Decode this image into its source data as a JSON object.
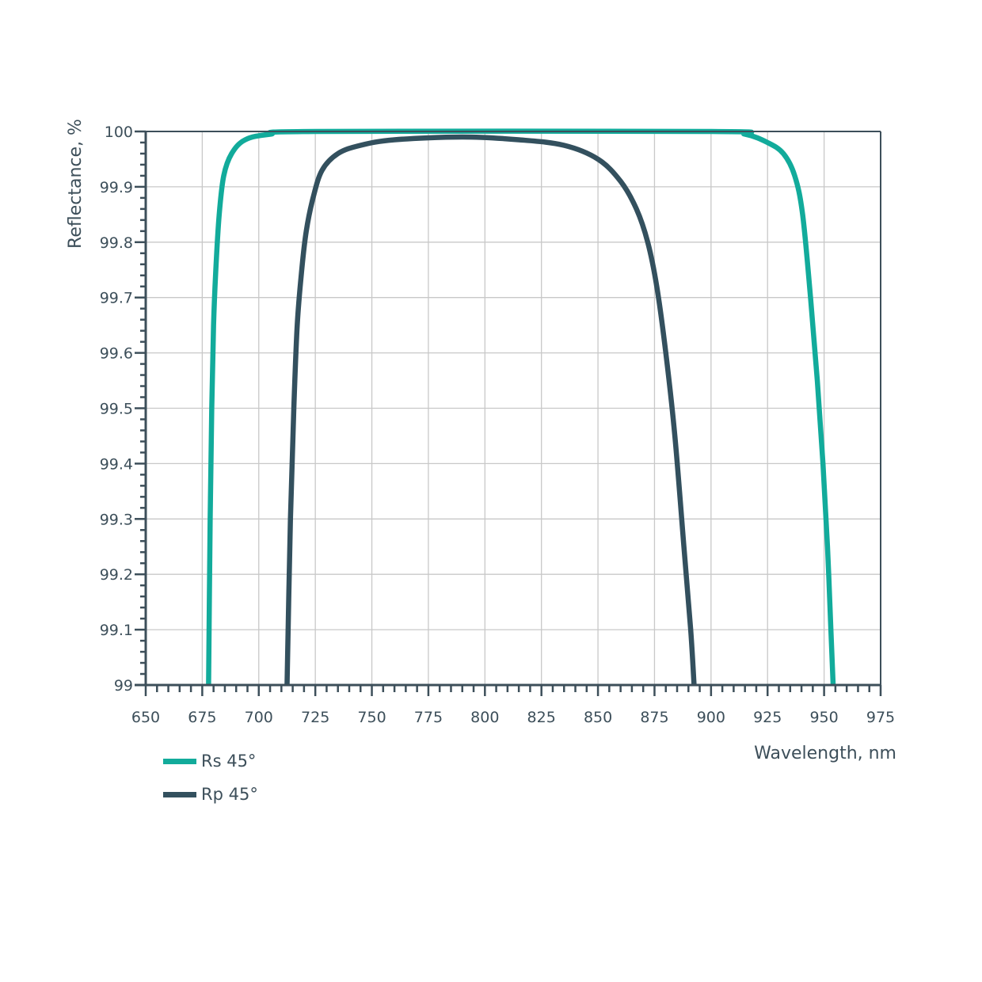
{
  "chart_data": {
    "type": "line",
    "title": "",
    "xlabel": "Wavelength, nm",
    "ylabel": "Reflectance, %",
    "xlim": [
      650,
      975
    ],
    "ylim": [
      99,
      100
    ],
    "x_ticks": [
      650,
      675,
      700,
      725,
      750,
      775,
      800,
      825,
      850,
      875,
      900,
      925,
      950,
      975
    ],
    "y_ticks": [
      "99",
      "99.1",
      "99.2",
      "99.3",
      "99.4",
      "99.5",
      "99.6",
      "99.7",
      "99.8",
      "99.9",
      "100"
    ],
    "grid": true,
    "legend_position": "bottom-left",
    "series": [
      {
        "name": "Rs 45°",
        "color": "#12ab9b",
        "points": [
          [
            677.8,
            99.0
          ],
          [
            678.5,
            99.3
          ],
          [
            679.2,
            99.5
          ],
          [
            680,
            99.65
          ],
          [
            681,
            99.75
          ],
          [
            682.5,
            99.85
          ],
          [
            684.5,
            99.92
          ],
          [
            688,
            99.96
          ],
          [
            694,
            99.985
          ],
          [
            705,
            99.995
          ],
          [
            725,
            100
          ],
          [
            900,
            100
          ],
          [
            915,
            99.995
          ],
          [
            925,
            99.98
          ],
          [
            932,
            99.96
          ],
          [
            937,
            99.92
          ],
          [
            940.5,
            99.85
          ],
          [
            944,
            99.7
          ],
          [
            947,
            99.55
          ],
          [
            949.5,
            99.4
          ],
          [
            951.5,
            99.25
          ],
          [
            953,
            99.1
          ],
          [
            954,
            99.0
          ]
        ]
      },
      {
        "name": "Rp 45°",
        "color": "#33505e",
        "points": [
          [
            712.5,
            99.0
          ],
          [
            714,
            99.3
          ],
          [
            715.5,
            99.5
          ],
          [
            717,
            99.65
          ],
          [
            719,
            99.75
          ],
          [
            721,
            99.82
          ],
          [
            724,
            99.88
          ],
          [
            728,
            99.93
          ],
          [
            735,
            99.96
          ],
          [
            745,
            99.975
          ],
          [
            760,
            99.985
          ],
          [
            790,
            99.99
          ],
          [
            815,
            99.985
          ],
          [
            835,
            99.975
          ],
          [
            850,
            99.95
          ],
          [
            860,
            99.91
          ],
          [
            867,
            99.86
          ],
          [
            872,
            99.8
          ],
          [
            876,
            99.72
          ],
          [
            880,
            99.6
          ],
          [
            884,
            99.45
          ],
          [
            888,
            99.25
          ],
          [
            891,
            99.1
          ],
          [
            892.5,
            99.0
          ]
        ]
      }
    ]
  },
  "legend": {
    "items": [
      {
        "label": "Rs 45°",
        "color": "#12ab9b"
      },
      {
        "label": "Rp 45°",
        "color": "#33505e"
      }
    ]
  },
  "colors": {
    "axis": "#3d4f5a",
    "grid": "#c8c8c8"
  }
}
